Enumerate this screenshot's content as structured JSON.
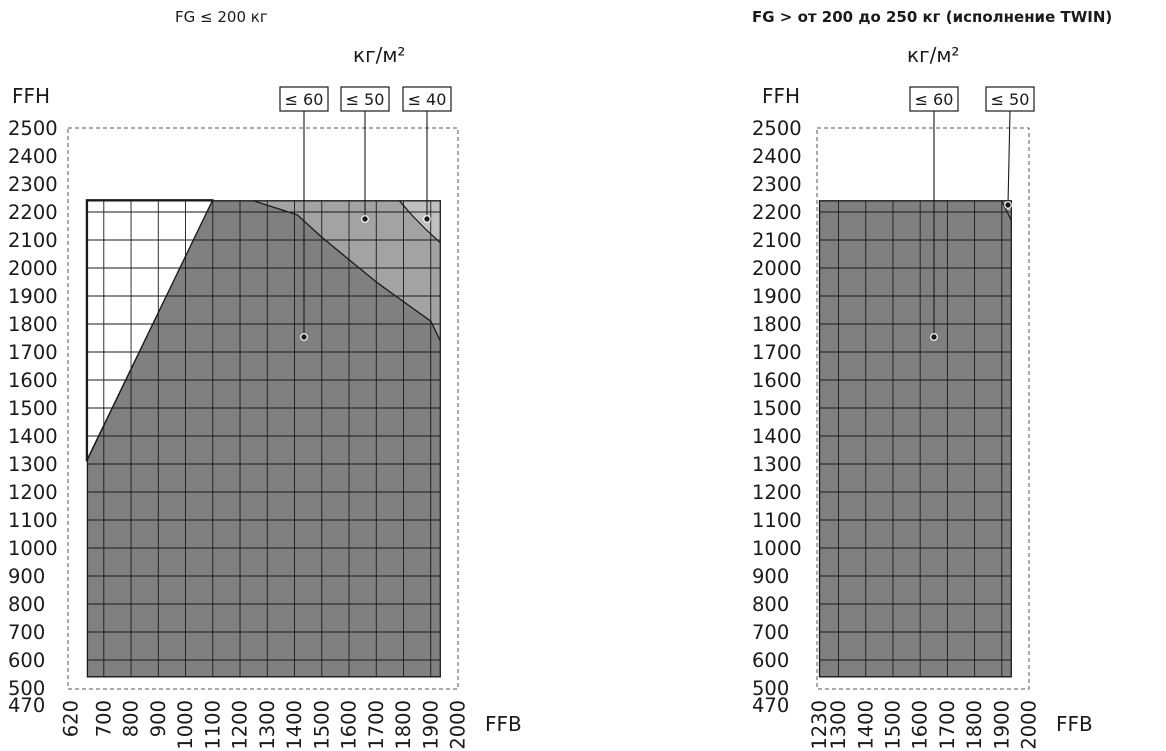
{
  "chart_data": [
    {
      "type": "area",
      "title": "FG ≤ 200 кг",
      "unit_label": "кг/м²",
      "xlabel": "FFB",
      "ylabel": "FFH",
      "x_ticks": [
        620,
        700,
        800,
        900,
        1000,
        1100,
        1200,
        1300,
        1400,
        1500,
        1600,
        1700,
        1800,
        1900,
        2000
      ],
      "y_ticks": [
        470,
        500,
        600,
        700,
        800,
        900,
        1000,
        1100,
        1200,
        1300,
        1400,
        1500,
        1600,
        1700,
        1800,
        1900,
        2000,
        2100,
        2200,
        2300,
        2400,
        2500
      ],
      "xlim": [
        620,
        2000
      ],
      "ylim": [
        470,
        2500
      ],
      "grid": true,
      "series": [
        {
          "name": "≤ 60",
          "color": "#808080",
          "boundary_x": [
            1250,
            1410,
            1500,
            1600,
            1700,
            1800,
            1900,
            1935
          ],
          "boundary_y": [
            2240,
            2190,
            2110,
            2030,
            1950,
            1880,
            1810,
            1740
          ],
          "region_note": "below/left of boundary; left edge from (640,1310) to (1100,2240)",
          "min_ffb": 640,
          "max_ffb": 1935,
          "min_ffh": 540,
          "max_ffh": 2240
        },
        {
          "name": "≤ 50",
          "color": "#a3a3a3",
          "boundary_x": [
            1785,
            1830,
            1880,
            1935
          ],
          "boundary_y": [
            2240,
            2190,
            2140,
            2090
          ]
        },
        {
          "name": "≤ 40",
          "color": "#c0c0c0"
        }
      ]
    },
    {
      "type": "area",
      "title": "FG > от 200 до 250 кг (исполнение TWIN)",
      "unit_label": "кг/м²",
      "xlabel": "FFB",
      "ylabel": "FFH",
      "x_ticks": [
        1230,
        1300,
        1400,
        1500,
        1600,
        1700,
        1800,
        1900,
        2000
      ],
      "y_ticks": [
        470,
        500,
        600,
        700,
        800,
        900,
        1000,
        1100,
        1200,
        1300,
        1400,
        1500,
        1600,
        1700,
        1800,
        1900,
        2000,
        2100,
        2200,
        2300,
        2400,
        2500
      ],
      "xlim": [
        1230,
        2000
      ],
      "ylim": [
        470,
        2500
      ],
      "grid": true,
      "series": [
        {
          "name": "≤ 60",
          "color": "#808080",
          "min_ffb": 1230,
          "max_ffb": 1935,
          "min_ffh": 540,
          "max_ffh": 2240
        },
        {
          "name": "≤ 50",
          "color": "#a3a3a3",
          "boundary_x": [
            1900,
            1935
          ],
          "boundary_y": [
            2240,
            2170
          ]
        }
      ]
    }
  ]
}
